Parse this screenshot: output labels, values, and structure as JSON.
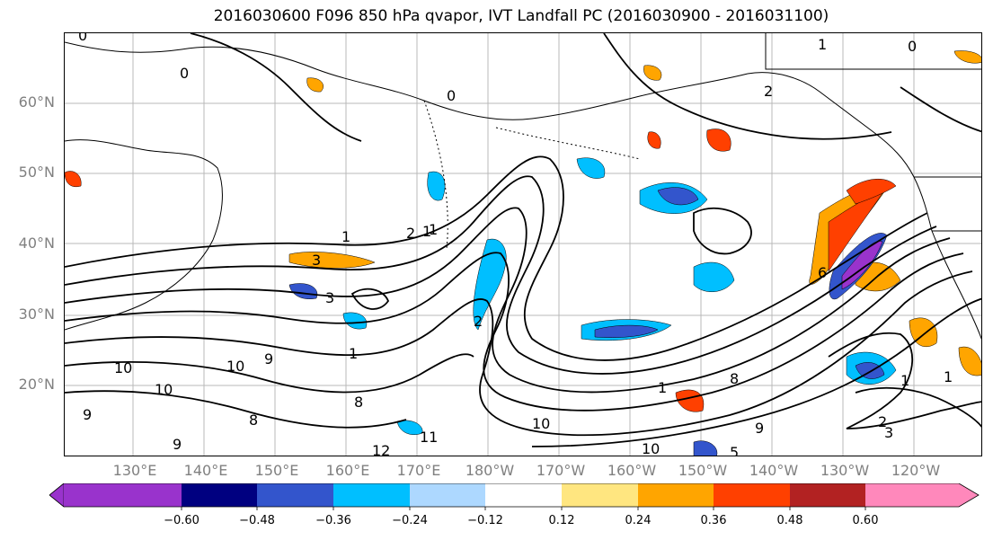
{
  "title": "2016030600 F096 850 hPa qvapor, IVT Landfall PC (2016030900 - 2016031100)",
  "lat_labels": [
    "60°N",
    "50°N",
    "40°N",
    "30°N",
    "20°N"
  ],
  "lon_labels": [
    "130°E",
    "140°E",
    "150°E",
    "160°E",
    "170°E",
    "180°W",
    "170°W",
    "160°W",
    "150°W",
    "140°W",
    "130°W",
    "120°W"
  ],
  "colorbar": {
    "colors": [
      "#9933cc",
      "#000080",
      "#3355cc",
      "#00bfff",
      "#add8ff",
      "#ffffff",
      "#ffe680",
      "#ffa500",
      "#ff4000",
      "#b22222",
      "#ff88bb"
    ],
    "tick_labels": [
      "−0.60",
      "−0.48",
      "−0.36",
      "−0.24",
      "−0.12",
      "0.12",
      "0.24",
      "0.36",
      "0.48",
      "0.60"
    ]
  },
  "contour_labels": [
    "0",
    "0",
    "1",
    "2",
    "1",
    "3",
    "3",
    "2",
    "1",
    "1",
    "1",
    "10",
    "10",
    "8",
    "8",
    "9",
    "10",
    "10",
    "11",
    "12",
    "9",
    "10",
    "5",
    "9",
    "8",
    "6",
    "1",
    "1",
    "2",
    "3",
    "2",
    "0",
    "1",
    "0",
    "9"
  ]
}
